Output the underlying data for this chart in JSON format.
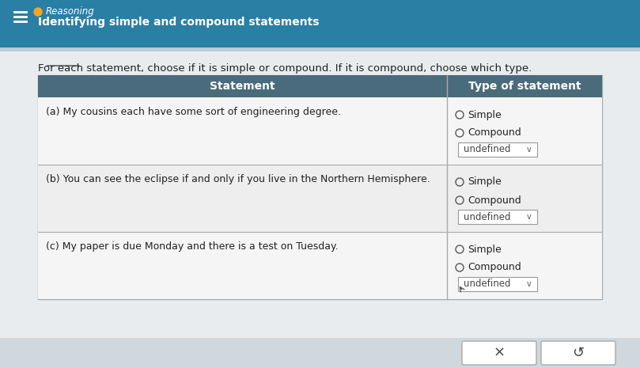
{
  "title_bar_color": "#2a7fa5",
  "title_bar_height": 0.13,
  "reasoning_label": "Reasoning",
  "reasoning_dot_color": "#f5a623",
  "subtitle": "Identifying simple and compound statements",
  "subtitle_color": "#ffffff",
  "bg_color": "#d9e8f0",
  "body_bg": "#e8ecef",
  "intro_text": "For each statement, choose if it is simple or compound. If it is compound, choose which type.",
  "table_header_bg": "#4a6b7c",
  "table_header_text_color": "#ffffff",
  "table_bg": "#f5f5f5",
  "table_alt_bg": "#eaeaea",
  "col1_header": "Statement",
  "col2_header": "Type of statement",
  "rows": [
    {
      "statement": "(a) My cousins each have some sort of engineering degree.",
      "options": [
        "Simple",
        "Compound"
      ],
      "dropdown": "undefined"
    },
    {
      "statement": "(b) You can see the eclipse if and only if you live in the Northern Hemisphere.",
      "options": [
        "Simple",
        "Compound"
      ],
      "dropdown": "undefined"
    },
    {
      "statement": "(c) My paper is due Monday and there is a test on Tuesday.",
      "options": [
        "Simple",
        "Compound"
      ],
      "dropdown": "undefined"
    }
  ],
  "footer_bg": "#d0d8de",
  "btn_x_label": "×",
  "btn_redo_label": "↺",
  "hamburger_color": "#ffffff",
  "chevron_color": "#2a7fa5",
  "underline_word": "statement"
}
